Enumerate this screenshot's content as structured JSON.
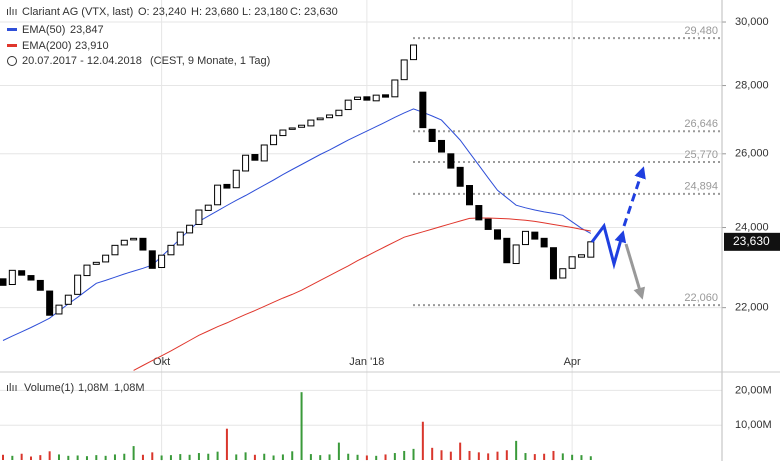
{
  "chart_data": {
    "type": "candlestick",
    "header": {
      "instrument": "Clariant AG (VTX, last)",
      "open": "O: 23,240",
      "high": "H: 23,680",
      "low": "L: 23,180",
      "close": "C: 23,630",
      "range": "20.07.2017 - 12.04.2018",
      "info": "(CEST, 9 Monate, 1 Tag)"
    },
    "categories": [
      null,
      null,
      null,
      null,
      null,
      null,
      null,
      null,
      null,
      null,
      null,
      null,
      null,
      null,
      null,
      null,
      null,
      "Okt",
      null,
      null,
      null,
      null,
      null,
      null,
      null,
      null,
      null,
      null,
      null,
      null,
      null,
      null,
      null,
      null,
      null,
      null,
      null,
      null,
      null,
      "Jan '18",
      null,
      null,
      null,
      null,
      null,
      null,
      null,
      null,
      null,
      null,
      null,
      null,
      null,
      null,
      null,
      null,
      null,
      null,
      null,
      null,
      null,
      "Apr",
      null,
      null
    ],
    "open": [
      22700,
      22560,
      22900,
      22780,
      22660,
      22400,
      21850,
      22080,
      22320,
      22780,
      23060,
      23120,
      23300,
      23550,
      23680,
      23720,
      23400,
      22980,
      23300,
      23550,
      23860,
      24080,
      24450,
      24600,
      25150,
      25060,
      25520,
      25980,
      25800,
      26260,
      26520,
      26700,
      26760,
      26800,
      26980,
      27040,
      27100,
      27280,
      27580,
      27660,
      27540,
      27720,
      27660,
      28180,
      28800,
      27800,
      26700,
      26380,
      26000,
      25620,
      25120,
      24580,
      24220,
      23940,
      23720,
      23080,
      23560,
      23880,
      23720,
      23480,
      22720,
      22960,
      23240,
      23240
    ],
    "close": [
      22540,
      22910,
      22790,
      22670,
      22420,
      21820,
      22060,
      22300,
      22790,
      23040,
      23110,
      23290,
      23540,
      23670,
      23720,
      23420,
      22960,
      23290,
      23540,
      23880,
      24060,
      24460,
      24590,
      25130,
      25050,
      25540,
      25960,
      25820,
      26250,
      26530,
      26680,
      26740,
      26820,
      26970,
      27030,
      27120,
      27260,
      27560,
      27650,
      27560,
      27710,
      27650,
      28170,
      28790,
      29260,
      26750,
      26350,
      26050,
      25600,
      25100,
      24600,
      24200,
      23950,
      23700,
      23100,
      23550,
      23900,
      23700,
      23500,
      22700,
      22950,
      23250,
      23300,
      23630
    ],
    "up_color": "#ffffff",
    "down_color": "#000000",
    "series": [
      {
        "name": "EMA(50)",
        "last_label": "23,847",
        "color": "#2f4fd8",
        "values": [
          21230,
          21330,
          21430,
          21530,
          21640,
          21750,
          21920,
          22090,
          22250,
          22420,
          22590,
          22660,
          22740,
          22820,
          22890,
          22960,
          23040,
          23260,
          23480,
          23710,
          23940,
          24160,
          24300,
          24440,
          24580,
          24720,
          24850,
          24990,
          25130,
          25270,
          25420,
          25560,
          25700,
          25840,
          25980,
          26110,
          26250,
          26390,
          26520,
          26650,
          26780,
          26910,
          27050,
          27180,
          27300,
          27200,
          27090,
          26970,
          26680,
          26390,
          26030,
          25680,
          25330,
          24990,
          24790,
          24590,
          24520,
          24460,
          24410,
          24370,
          24320,
          24150,
          23980,
          23847
        ]
      },
      {
        "name": "EMA(200)",
        "last_label": "23,910",
        "color": "#e0362c",
        "values": [
          null,
          null,
          null,
          null,
          null,
          null,
          null,
          null,
          null,
          null,
          null,
          null,
          null,
          null,
          20550,
          20660,
          20770,
          20880,
          20990,
          21110,
          21230,
          21350,
          21450,
          21550,
          21640,
          21740,
          21840,
          21930,
          22030,
          22130,
          22230,
          22320,
          22420,
          22540,
          22660,
          22780,
          22900,
          23020,
          23150,
          23270,
          23390,
          23510,
          23630,
          23750,
          23820,
          23890,
          23960,
          24030,
          24100,
          24170,
          24240,
          24250,
          24250,
          24240,
          24230,
          24210,
          24190,
          24160,
          24120,
          24080,
          24040,
          24000,
          23950,
          23910
        ]
      }
    ],
    "log_scale": true,
    "ylim": [
      20560,
      30726
    ],
    "yticks": [
      {
        "value": 22000,
        "label": "22,000"
      },
      {
        "value": 24000,
        "label": "24,000"
      },
      {
        "value": 26000,
        "label": "26,000"
      },
      {
        "value": 28000,
        "label": "28,000"
      },
      {
        "value": 30000,
        "label": "30,000"
      }
    ],
    "grid": true,
    "levels": [
      {
        "value": 29480,
        "label": "29,480"
      },
      {
        "value": 26646,
        "label": "26,646"
      },
      {
        "value": 25770,
        "label": "25,770"
      },
      {
        "value": 24894,
        "label": "24,894"
      },
      {
        "value": 22060,
        "label": "22,060"
      }
    ],
    "last_price": {
      "value": 23630,
      "label": "23,630"
    },
    "volume": {
      "name": "Volume(1)",
      "last_labels": [
        "1,08M",
        "1,08M"
      ],
      "values": [
        1.5,
        1.2,
        1.8,
        1.0,
        1.4,
        2.5,
        1.6,
        1.2,
        1.3,
        1.1,
        1.4,
        1.2,
        1.6,
        1.8,
        4.0,
        1.5,
        2.2,
        1.3,
        1.4,
        1.7,
        1.5,
        2.0,
        1.8,
        2.4,
        9.0,
        1.6,
        2.2,
        1.5,
        1.8,
        1.3,
        1.6,
        2.5,
        19.5,
        1.7,
        1.4,
        1.6,
        5.0,
        1.8,
        1.5,
        1.3,
        1.2,
        1.6,
        2.0,
        2.6,
        3.2,
        11.0,
        3.5,
        2.8,
        2.4,
        5.0,
        2.6,
        2.2,
        1.9,
        2.4,
        2.8,
        5.5,
        2.0,
        1.7,
        1.8,
        2.6,
        1.9,
        1.5,
        1.4,
        1.08
      ],
      "up_color": "#3a9a3a",
      "down_color": "#d9362c",
      "ylim": [
        0,
        23
      ],
      "yticks": [
        {
          "value": 10,
          "label": "10,00M"
        },
        {
          "value": 20,
          "label": "20,00M"
        }
      ]
    }
  }
}
